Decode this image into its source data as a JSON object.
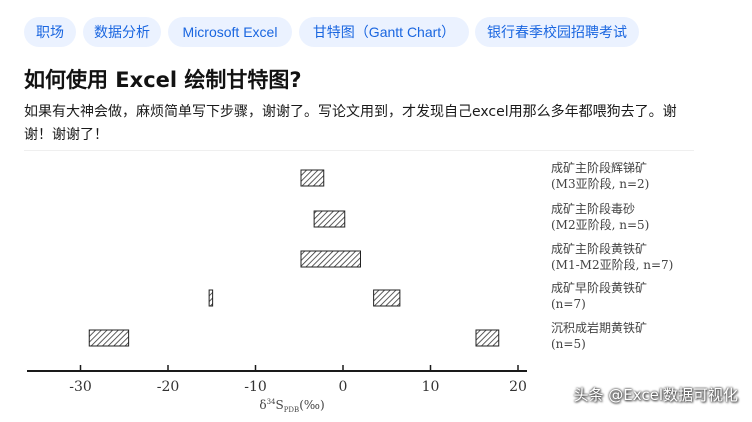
{
  "tags": [
    "职场",
    "数据分析",
    "Microsoft Excel",
    "甘特图（Gantt Chart）",
    "银行春季校园招聘考试"
  ],
  "question": {
    "title": "如何使用 Excel 绘制甘特图?",
    "description": "如果有大神会做，麻烦简单写下步骤，谢谢了。写论文用到，才发现自己excel用那么多年都喂狗去了。谢谢！谢谢了！"
  },
  "chart_data": {
    "type": "bar",
    "orientation": "horizontal-range",
    "categories": [
      {
        "line1": "成矿主阶段辉锑矿",
        "line2": "(M3亚阶段, n=2)"
      },
      {
        "line1": "成矿主阶段毒砂",
        "line2": "(M2亚阶段, n=5)"
      },
      {
        "line1": "成矿主阶段黄铁矿",
        "line2": "(M1-M2亚阶段, n=7)"
      },
      {
        "line1": "成矿早阶段黄铁矿",
        "line2": "(n=7)"
      },
      {
        "line1": "沉积成岩期黄铁矿",
        "line2": "(n=5)"
      }
    ],
    "ranges": [
      [
        [
          -4.8,
          -2.2
        ]
      ],
      [
        [
          -3.3,
          0.2
        ]
      ],
      [
        [
          -4.8,
          2.0
        ]
      ],
      [
        [
          -15.3,
          -14.9
        ],
        [
          3.5,
          6.5
        ]
      ],
      [
        [
          -29.0,
          -24.5
        ],
        [
          15.2,
          17.8
        ]
      ]
    ],
    "x_ticks": [
      -30,
      -20,
      -10,
      0,
      10,
      20
    ],
    "x_tick_labels": [
      "-30",
      "-20",
      "-10",
      "0",
      "10",
      "20"
    ],
    "xlim": [
      -35,
      22
    ],
    "xlabel_main": "δ",
    "xlabel_sup": "34",
    "xlabel_s": "S",
    "xlabel_sub": "PDB",
    "xlabel_unit": "(‰)",
    "fill": "diagonal-hatch",
    "grid": false,
    "legend": "none"
  },
  "watermark": "头条 @Excel数据可视化"
}
